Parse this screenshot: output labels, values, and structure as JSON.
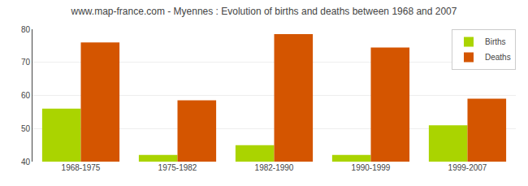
{
  "chart_data": {
    "type": "bar",
    "title": "www.map-france.com - Myennes : Evolution of births and deaths between 1968 and 2007",
    "categories": [
      "1968-1975",
      "1975-1982",
      "1982-1990",
      "1990-1999",
      "1999-2007"
    ],
    "series": [
      {
        "name": "Births",
        "color": "#aad400",
        "values": [
          56,
          42,
          45,
          42,
          51
        ]
      },
      {
        "name": "Deaths",
        "color": "#d45500",
        "values": [
          76,
          58.5,
          78.5,
          74.5,
          59
        ]
      }
    ],
    "ylim": [
      40,
      80
    ],
    "yticks": [
      40,
      50,
      60,
      70,
      80
    ],
    "grid": true,
    "legend": "upper right"
  }
}
